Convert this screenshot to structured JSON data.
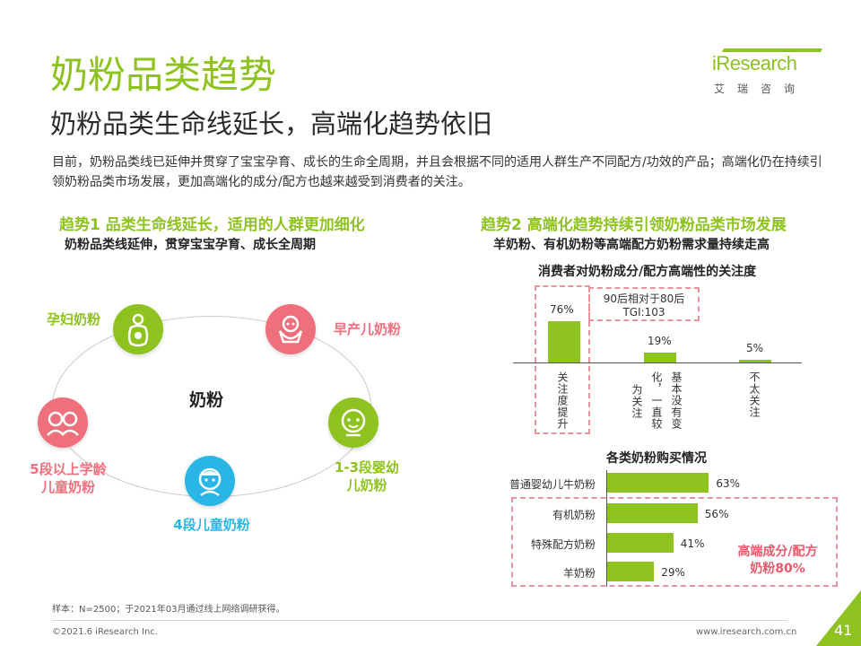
{
  "header": {
    "title": "奶粉品类趋势",
    "subtitle": "奶粉品类生命线延长，高端化趋势依旧",
    "intro": "目前，奶粉品类线已延伸并贯穿了宝宝孕育、成长的生命全周期，并且会根据不同的适用人群生产不同配方/功效的产品；高端化仍在持续引领奶粉品类市场发展，更加高端化的成分/配方也越来越受到消费者的关注。"
  },
  "logo": {
    "name": "iResearch",
    "cn": "艾瑞咨询"
  },
  "left": {
    "trend_title": "趋势1 品类生命线延长，适用的人群更加细化",
    "trend_sub": "奶粉品类线延伸，贯穿宝宝孕育、成长全周期",
    "center": "奶粉",
    "stages": {
      "pregnant": "孕妇奶粉",
      "premature": "早产儿奶粉",
      "infant_line1": "1-3段婴幼",
      "infant_line2": "儿奶粉",
      "child": "4段儿童奶粉",
      "school_line1": "5段以上学龄",
      "school_line2": "儿童奶粉"
    },
    "colors": {
      "pregnant": "#8dc21f",
      "premature": "#ef6f7c",
      "infant": "#8dc21f",
      "child": "#29b6e6",
      "school": "#ef6f7c"
    }
  },
  "right": {
    "trend_title": "趋势2 高端化趋势持续引领奶粉品类市场发展",
    "trend_sub": "羊奶粉、有机奶粉等高端配方奶粉需求量持续走高",
    "attention_chart_title": "消费者对奶粉成分/配方高端性的关注度",
    "tgi_note_line1": "90后相对于80后",
    "tgi_note_line2": "TGI:103",
    "purchase_chart_title": "各类奶粉购买情况",
    "highend_note_line1": "高端成分/配方",
    "highend_note_line2": "奶粉80%"
  },
  "chart_data": [
    {
      "type": "bar",
      "title": "消费者对奶粉成分/配方高端性的关注度",
      "categories": [
        "关注度提升",
        "基本没有变化，一直较为关注",
        "不太关注"
      ],
      "category_labels": {
        "c1": "关注度提升",
        "c2a": "基本没有变",
        "c2b": "化，一直较",
        "c2c": "为关注",
        "c3": "不太关注"
      },
      "values": [
        76,
        19,
        5
      ],
      "value_labels": [
        "76%",
        "19%",
        "5%"
      ],
      "ylim": [
        0,
        100
      ]
    },
    {
      "type": "bar",
      "orientation": "horizontal",
      "title": "各类奶粉购买情况",
      "categories": [
        "普通婴幼儿牛奶粉",
        "有机奶粉",
        "特殊配方奶粉",
        "羊奶粉"
      ],
      "values": [
        63,
        56,
        41,
        29
      ],
      "value_labels": [
        "63%",
        "56%",
        "41%",
        "29%"
      ],
      "xlim": [
        0,
        100
      ]
    }
  ],
  "footer": {
    "source": "样本：N=2500；于2021年03月通过线上网络调研获得。",
    "copyright": "©2021.6 iResearch Inc.",
    "website": "www.iresearch.com.cn",
    "page": "41"
  },
  "theme": {
    "accent": "#8dc21f",
    "alert": "#e85a6a",
    "dash": "#e8959d"
  }
}
